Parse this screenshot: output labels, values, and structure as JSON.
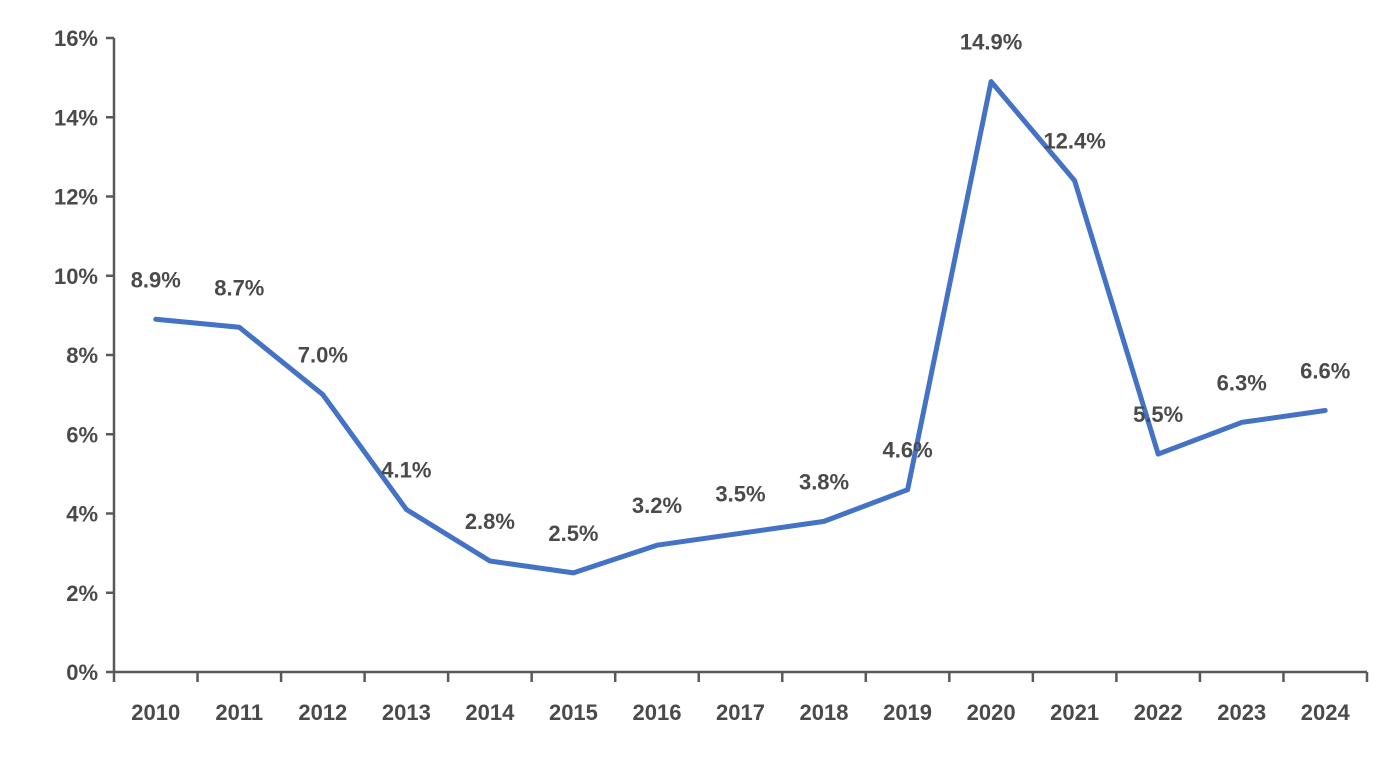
{
  "chart_data": {
    "type": "line",
    "title": "",
    "xlabel": "",
    "ylabel": "",
    "categories": [
      "2010",
      "2011",
      "2012",
      "2013",
      "2014",
      "2015",
      "2016",
      "2017",
      "2018",
      "2019",
      "2020",
      "2021",
      "2022",
      "2023",
      "2024"
    ],
    "series": [
      {
        "values": [
          8.9,
          8.7,
          7.0,
          4.1,
          2.8,
          2.5,
          3.2,
          3.5,
          3.8,
          4.6,
          14.9,
          12.4,
          5.5,
          6.3,
          6.6
        ],
        "labels": [
          "8.9%",
          "8.7%",
          "7.0%",
          "4.1%",
          "2.8%",
          "2.5%",
          "3.2%",
          "3.5%",
          "3.8%",
          "4.6%",
          "14.9%",
          "12.4%",
          "5.5%",
          "6.3%",
          "6.6%"
        ],
        "color": "#4472c4"
      }
    ],
    "ylim": [
      0,
      16
    ],
    "yticks": [
      0,
      2,
      4,
      6,
      8,
      10,
      12,
      14,
      16
    ],
    "ytick_labels": [
      "0%",
      "2%",
      "4%",
      "6%",
      "8%",
      "10%",
      "12%",
      "14%",
      "16%"
    ],
    "grid": false,
    "legend": "none",
    "axis_color": "#595959",
    "text_color": "#4a4a4a"
  }
}
